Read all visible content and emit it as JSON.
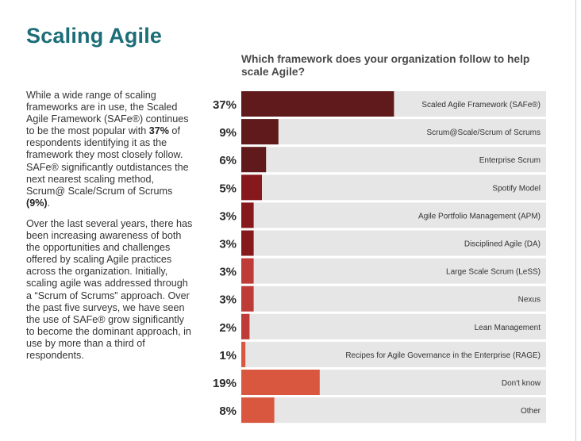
{
  "page": {
    "title": "Scaling Agile"
  },
  "body": {
    "p1_a": "While a wide range of scaling frameworks are in use, the Scaled Agile Framework (SAFe®) continues to be the most popular with ",
    "p1_b": "37%",
    "p1_c": " of respondents identifying it as the framework they most closely follow. SAFe® significantly outdistances the next nearest scaling method, Scrum@ Scale/Scrum of Scrums ",
    "p1_d": "(9%)",
    "p1_e": ".",
    "p2": "Over the last several years, there has been increasing awareness of both the opportunities and challenges offered by scaling Agile practices across the organization. Initially, scaling agile was addressed through a “Scrum of Scrums” approach. Over the past five surveys, we have seen the use of SAFe® grow significantly to become the dominant approach, in use by more than a third of respondents."
  },
  "colors": {
    "title": "#1b6e78",
    "track": "#e6e6e6",
    "bar_label_light": "#ffffff",
    "bar_label_dark": "#333333",
    "percent_label": "#2b2b2b"
  },
  "chart_data": {
    "type": "bar",
    "orientation": "horizontal",
    "title": "Which framework does your organization follow to help scale Agile?",
    "unit": "%",
    "xlim": [
      0,
      100
    ],
    "grid": false,
    "legend": "none",
    "categories": [
      "Scaled Agile Framework (SAFe®)",
      "Scrum@Scale/Scrum of Scrums",
      "Enterprise Scrum",
      "Spotify Model",
      "Agile Portfolio Management (APM)",
      "Disciplined Agile (DA)",
      "Large Scale Scrum (LeSS)",
      "Nexus",
      "Lean Management",
      "Recipes for Agile Governance in the Enterprise (RAGE)",
      "Don't know",
      "Other"
    ],
    "values": [
      37,
      9,
      6,
      5,
      3,
      3,
      3,
      3,
      2,
      1,
      19,
      8
    ],
    "value_labels": [
      "37%",
      "9%",
      "6%",
      "5%",
      "3%",
      "3%",
      "3%",
      "3%",
      "2%",
      "1%",
      "19%",
      "8%"
    ],
    "bar_colors": [
      "#611a1b",
      "#611a1b",
      "#611a1b",
      "#86191c",
      "#86191c",
      "#86191c",
      "#bf3b37",
      "#bf3b37",
      "#bf3b37",
      "#d9573f",
      "#d9573f",
      "#d9573f"
    ]
  }
}
